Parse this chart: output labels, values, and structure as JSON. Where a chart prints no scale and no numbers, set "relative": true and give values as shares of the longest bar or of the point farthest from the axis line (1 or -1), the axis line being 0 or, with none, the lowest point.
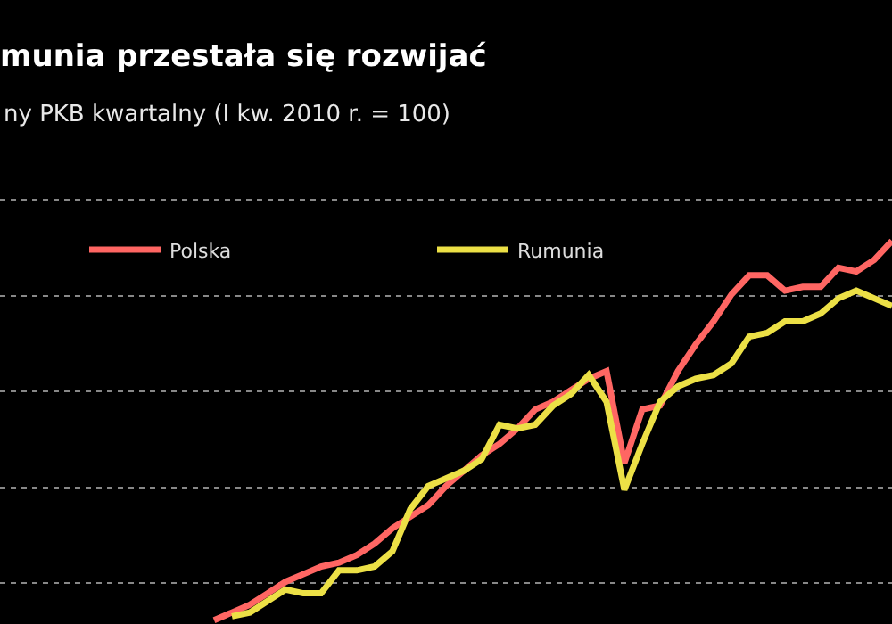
{
  "chart_data": {
    "type": "line",
    "title": "munia przestała się rozwijać",
    "subtitle": "ny PKB kwartalny (I kw. 2010 r. = 100)",
    "relative": true,
    "grid": true,
    "legend": "top left",
    "marker": "none",
    "line_style": "solid",
    "categories": [
      null,
      null,
      null,
      null,
      null,
      null,
      null,
      null,
      null,
      null,
      null,
      null,
      null,
      null,
      null,
      null,
      null,
      null,
      null,
      null,
      null,
      null,
      null,
      null,
      null,
      null,
      null,
      null,
      null,
      null,
      null,
      null,
      null,
      null,
      null,
      null,
      null,
      null,
      null,
      null
    ],
    "series": [
      {
        "name": "Polska",
        "color": "#ff6663",
        "values": [
          null,
          0.01,
          0.03,
          0.05,
          0.08,
          0.11,
          0.13,
          0.15,
          0.16,
          0.18,
          0.21,
          0.25,
          0.28,
          0.31,
          0.36,
          0.4,
          0.44,
          0.47,
          0.51,
          0.56,
          0.58,
          0.61,
          0.64,
          0.66,
          0.42,
          0.56,
          0.57,
          0.66,
          0.73,
          0.79,
          0.86,
          0.91,
          0.91,
          0.87,
          0.88,
          0.88,
          0.93,
          0.92,
          0.95,
          1
        ]
      },
      {
        "name": "Rumunia",
        "color": "#ece046",
        "values": [
          null,
          null,
          0.02,
          0.03,
          0.06,
          0.09,
          0.08,
          0.08,
          0.14,
          0.14,
          0.15,
          0.19,
          0.3,
          0.36,
          0.38,
          0.4,
          0.43,
          0.52,
          0.51,
          0.52,
          0.57,
          0.6,
          0.65,
          0.58,
          0.35,
          0.47,
          0.58,
          0.62,
          0.64,
          0.65,
          0.68,
          0.75,
          0.76,
          0.79,
          0.79,
          0.81,
          0.85,
          0.87,
          0.85,
          0.83
        ]
      }
    ]
  }
}
